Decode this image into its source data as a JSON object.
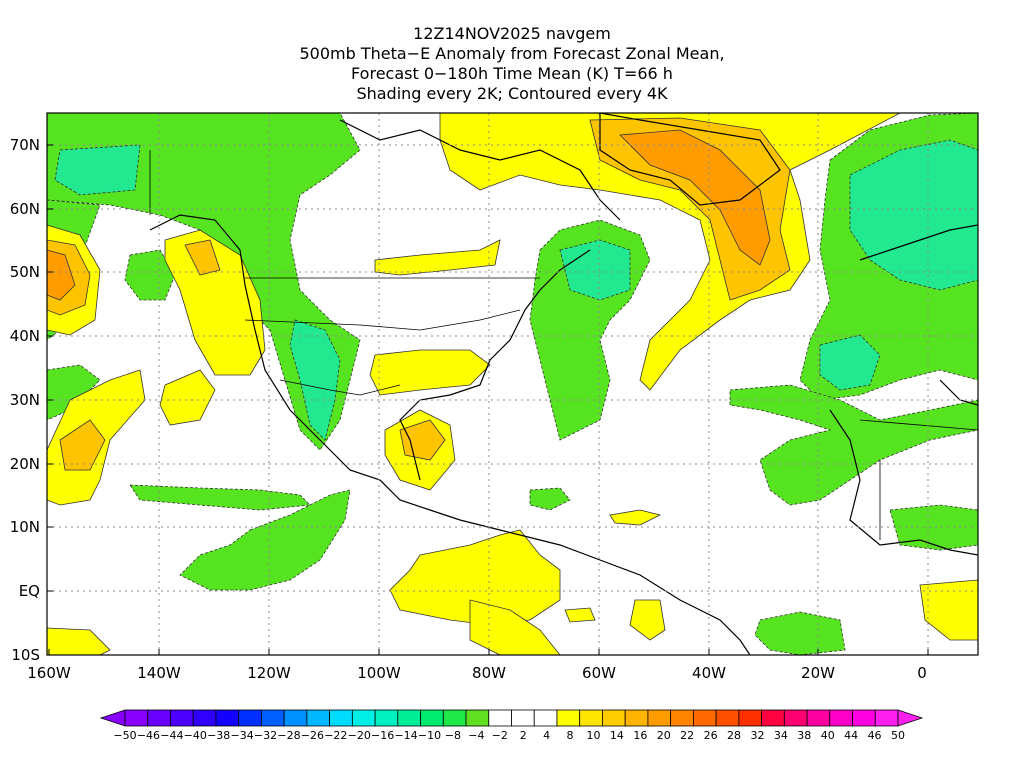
{
  "title": {
    "line1": "12Z14NOV2025 navgem",
    "line2": "500mb Theta−E Anomaly from Forecast Zonal Mean,",
    "line3": "Forecast 0−180h Time Mean (K) T=66 h",
    "line4": "Shading every 2K; Contoured every 4K"
  },
  "axes": {
    "x_labels": [
      "160W",
      "140W",
      "120W",
      "100W",
      "80W",
      "60W",
      "40W",
      "20W",
      "0"
    ],
    "y_labels": [
      "70N",
      "60N",
      "50N",
      "40N",
      "30N",
      "20N",
      "10N",
      "EQ",
      "10S"
    ]
  },
  "colorbar": {
    "labels": [
      "−50",
      "−46",
      "−44",
      "−40",
      "−38",
      "−34",
      "−32",
      "−28",
      "−26",
      "−22",
      "−20",
      "−16",
      "−14",
      "−10",
      "−8",
      "−4",
      "−2",
      "2",
      "4",
      "8",
      "10",
      "14",
      "16",
      "20",
      "22",
      "26",
      "28",
      "32",
      "34",
      "38",
      "40",
      "44",
      "46",
      "50"
    ],
    "colors": [
      "#8800ff",
      "#6a00ff",
      "#4d00ff",
      "#3000ff",
      "#1400ff",
      "#0030ff",
      "#0060ff",
      "#0090ff",
      "#00b8ff",
      "#00dcff",
      "#00f0e8",
      "#00f0c0",
      "#00ee98",
      "#00ea70",
      "#20e84a",
      "#60e020",
      "#ffffff",
      "#ffffff",
      "#ffffff",
      "#ffff00",
      "#ffe400",
      "#ffcc00",
      "#ffb400",
      "#ff9c00",
      "#ff8400",
      "#ff6a00",
      "#ff5000",
      "#ff3000",
      "#ff0040",
      "#ff0070",
      "#ff00a0",
      "#ff00c8",
      "#ff00e0",
      "#ff20f0"
    ]
  }
}
